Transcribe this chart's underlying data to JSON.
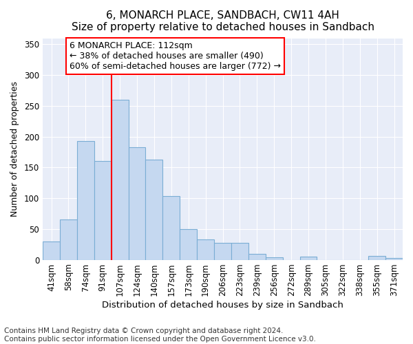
{
  "title": "6, MONARCH PLACE, SANDBACH, CW11 4AH",
  "subtitle": "Size of property relative to detached houses in Sandbach",
  "xlabel": "Distribution of detached houses by size in Sandbach",
  "ylabel": "Number of detached properties",
  "categories": [
    "41sqm",
    "58sqm",
    "74sqm",
    "91sqm",
    "107sqm",
    "124sqm",
    "140sqm",
    "157sqm",
    "173sqm",
    "190sqm",
    "206sqm",
    "223sqm",
    "239sqm",
    "256sqm",
    "272sqm",
    "289sqm",
    "305sqm",
    "322sqm",
    "338sqm",
    "355sqm",
    "371sqm"
  ],
  "values": [
    30,
    65,
    193,
    160,
    260,
    183,
    163,
    103,
    50,
    33,
    28,
    28,
    10,
    4,
    0,
    5,
    0,
    0,
    0,
    6,
    3
  ],
  "bar_color": "#c5d8f0",
  "bar_edge_color": "#7aadd4",
  "bar_width": 1.0,
  "vline_color": "red",
  "annotation_text": "6 MONARCH PLACE: 112sqm\n← 38% of detached houses are smaller (490)\n60% of semi-detached houses are larger (772) →",
  "annotation_box_color": "white",
  "annotation_box_edge": "red",
  "ylim": [
    0,
    360
  ],
  "yticks": [
    0,
    50,
    100,
    150,
    200,
    250,
    300,
    350
  ],
  "bg_color": "#ffffff",
  "plot_bg_color": "#e8edf8",
  "footer_line1": "Contains HM Land Registry data © Crown copyright and database right 2024.",
  "footer_line2": "Contains public sector information licensed under the Open Government Licence v3.0.",
  "title_fontsize": 11,
  "subtitle_fontsize": 10,
  "xlabel_fontsize": 9.5,
  "ylabel_fontsize": 9,
  "tick_fontsize": 8.5,
  "annotation_fontsize": 9,
  "footer_fontsize": 7.5,
  "vline_bar_index": 4
}
